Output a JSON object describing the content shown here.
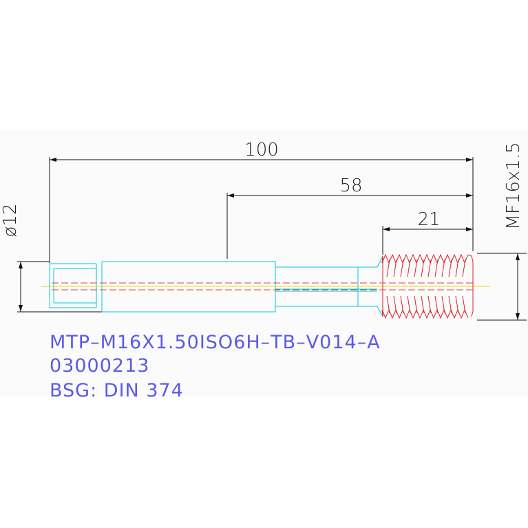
{
  "dimensions": {
    "overall_length": "100",
    "thread_to_end": "58",
    "thread_length": "21",
    "shank_diameter": "ø12",
    "thread_size": "MF16x1.5"
  },
  "labels": [
    "MTP–M16X1.50ISO6H–TB–V014–A",
    "03000213",
    "BSG: DIN  374"
  ]
}
